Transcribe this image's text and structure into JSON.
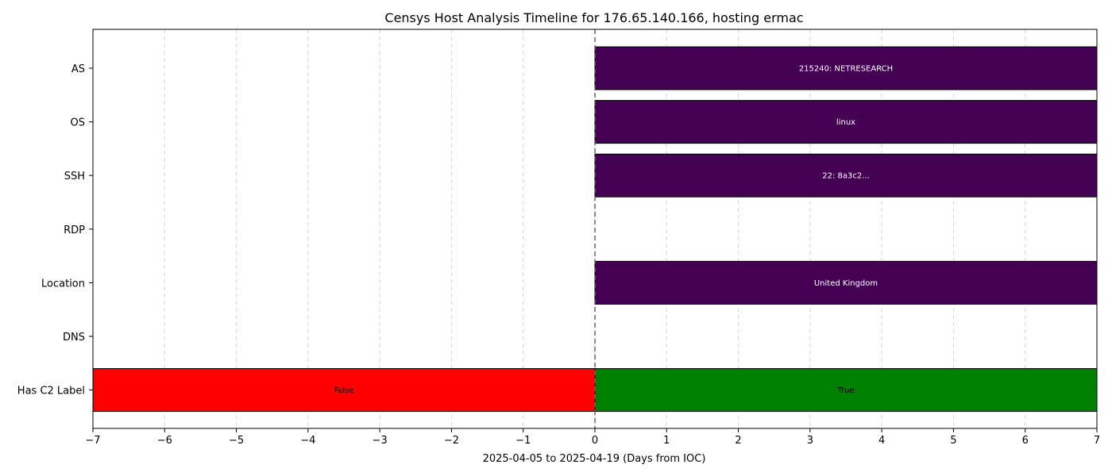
{
  "chart_data": {
    "type": "timeline",
    "title": "Censys Host Analysis Timeline for 176.65.140.166, hosting ermac",
    "xlabel": "2025-04-05 to 2025-04-19 (Days from IOC)",
    "ylabel": "",
    "xlim": [
      -7,
      7
    ],
    "xticks": [
      "−7",
      "−6",
      "−5",
      "−4",
      "−3",
      "−2",
      "−1",
      "0",
      "1",
      "2",
      "3",
      "4",
      "5",
      "6",
      "7"
    ],
    "grid": "x, dashed",
    "reference_line_x": 0,
    "categories": [
      "AS",
      "OS",
      "SSH",
      "RDP",
      "Location",
      "DNS",
      "Has C2 Label"
    ],
    "segments": [
      {
        "category": "AS",
        "start": 0,
        "end": 7,
        "label": "215240: NETRESEARCH",
        "color": "#440154",
        "label_color": "#ffffff"
      },
      {
        "category": "OS",
        "start": 0,
        "end": 7,
        "label": "linux",
        "color": "#440154",
        "label_color": "#ffffff"
      },
      {
        "category": "SSH",
        "start": 0,
        "end": 7,
        "label": "22: 8a3c2...",
        "color": "#440154",
        "label_color": "#ffffff"
      },
      {
        "category": "Location",
        "start": 0,
        "end": 7,
        "label": "United Kingdom",
        "color": "#440154",
        "label_color": "#ffffff"
      },
      {
        "category": "Has C2 Label",
        "start": -7,
        "end": 0,
        "label": "False",
        "color": "#ff0000",
        "label_color": "#000000"
      },
      {
        "category": "Has C2 Label",
        "start": 0,
        "end": 7,
        "label": "True",
        "color": "#008000",
        "label_color": "#000000"
      }
    ]
  }
}
